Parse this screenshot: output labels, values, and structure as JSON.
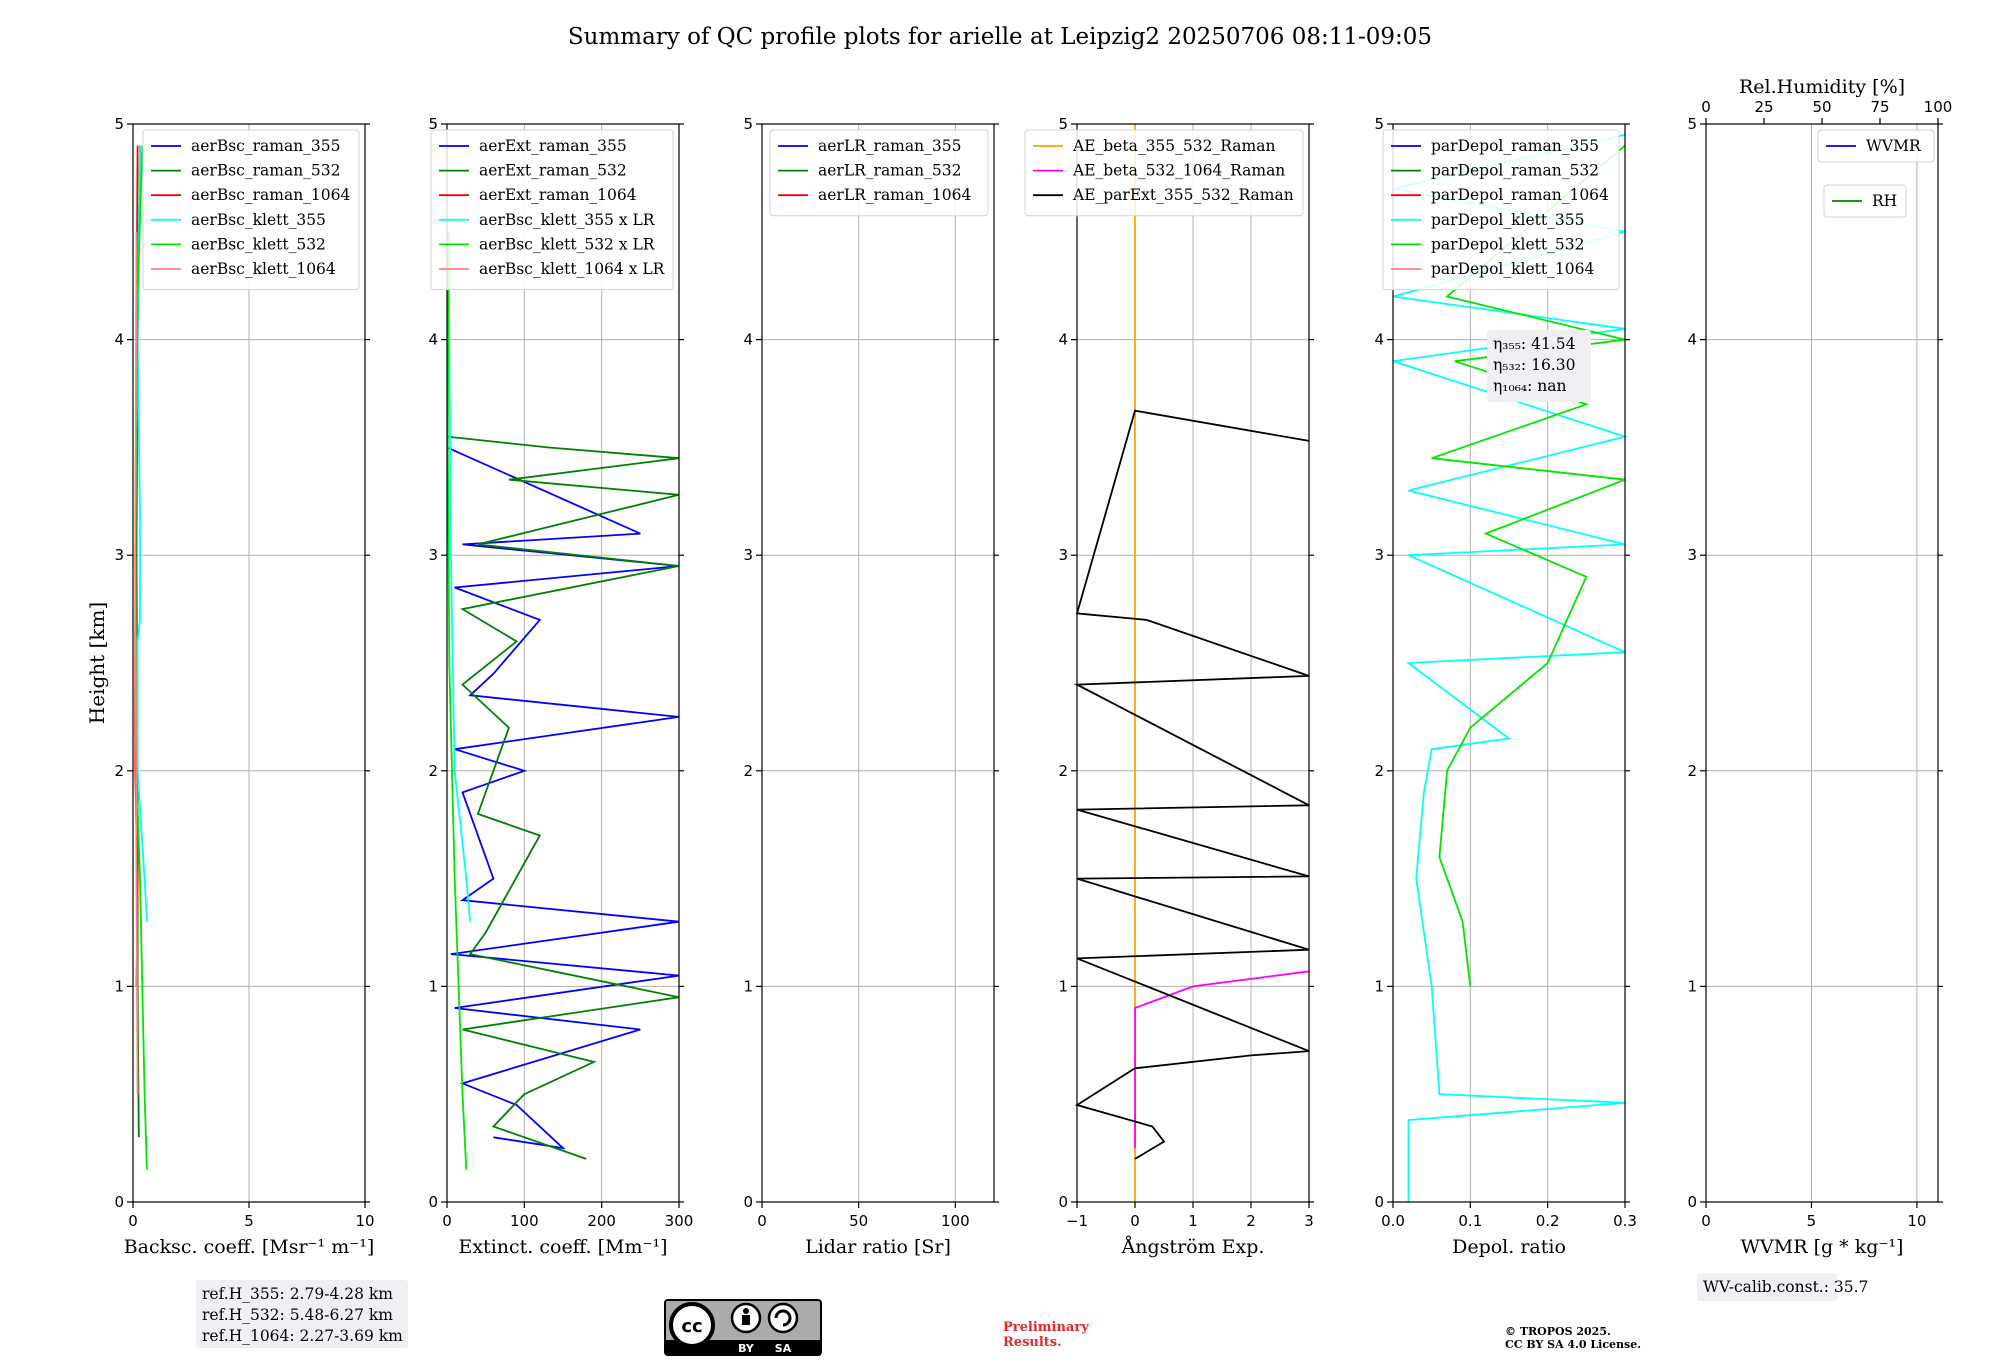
{
  "title": "Summary of QC profile plots for arielle at Leipzig2 20250706 08:11-09:05",
  "y_axis": {
    "label": "Height [km]",
    "range": [
      0,
      5
    ],
    "ticks": [
      "0",
      "1",
      "2",
      "3",
      "4",
      "5"
    ]
  },
  "chart_data": [
    {
      "type": "line",
      "xlabel": "Backsc. coeff. [Msr⁻¹ m⁻¹]",
      "xlim": [
        0,
        10
      ],
      "xticks": [
        "0",
        "5",
        "10"
      ],
      "legend_position": "top-right",
      "series": [
        {
          "name": "aerBsc_raman_355",
          "color": "#0000ff",
          "points": []
        },
        {
          "name": "aerBsc_raman_532",
          "color": "#008000",
          "points": [
            [
              0.25,
              0.3
            ],
            [
              0.2,
              1.0
            ],
            [
              0.2,
              2.0
            ],
            [
              0.15,
              3.0
            ],
            [
              0.2,
              4.0
            ],
            [
              0.3,
              4.9
            ]
          ]
        },
        {
          "name": "aerBsc_raman_1064",
          "color": "#ff0000",
          "points": [
            [
              0.15,
              1.0
            ],
            [
              0.2,
              1.45
            ],
            [
              0.1,
              2.0
            ],
            [
              0.1,
              3.0
            ],
            [
              0.15,
              4.0
            ],
            [
              0.2,
              4.9
            ]
          ]
        },
        {
          "name": "aerBsc_klett_355",
          "color": "#00ffff",
          "points": [
            [
              0.6,
              1.3
            ],
            [
              0.5,
              1.5
            ],
            [
              0.2,
              2.0
            ],
            [
              0.2,
              2.6
            ],
            [
              0.3,
              2.7
            ],
            [
              0.3,
              3.2
            ],
            [
              0.2,
              4.0
            ],
            [
              0.3,
              4.9
            ]
          ]
        },
        {
          "name": "aerBsc_klett_532",
          "color": "#00e600",
          "points": [
            [
              0.6,
              0.15
            ],
            [
              0.5,
              0.5
            ],
            [
              0.4,
              1.0
            ],
            [
              0.3,
              1.5
            ],
            [
              0.15,
              2.0
            ],
            [
              0.1,
              3.0
            ],
            [
              0.2,
              4.2
            ],
            [
              0.4,
              4.9
            ]
          ]
        },
        {
          "name": "aerBsc_klett_1064",
          "color": "#ff8080",
          "points": [
            [
              0.2,
              0.5
            ],
            [
              0.15,
              1.5
            ],
            [
              0.1,
              3.0
            ],
            [
              0.15,
              4.5
            ]
          ]
        }
      ],
      "annotation": [
        "ref.H_355: 2.79-4.28 km",
        "ref.H_532: 5.48-6.27 km",
        "ref.H_1064: 2.27-3.69 km"
      ]
    },
    {
      "type": "line",
      "xlabel": "Extinct. coeff. [Mm⁻¹]",
      "xlim": [
        0,
        300
      ],
      "xticks": [
        "0",
        "100",
        "200",
        "300"
      ],
      "legend_position": "top-right",
      "series": [
        {
          "name": "aerExt_raman_355",
          "color": "#0000ff",
          "points": [
            [
              60,
              0.3
            ],
            [
              150,
              0.25
            ],
            [
              90,
              0.45
            ],
            [
              20,
              0.55
            ],
            [
              250,
              0.8
            ],
            [
              10,
              0.9
            ],
            [
              300,
              1.05
            ],
            [
              5,
              1.15
            ],
            [
              300,
              1.3
            ],
            [
              20,
              1.4
            ],
            [
              60,
              1.5
            ],
            [
              20,
              1.9
            ],
            [
              100,
              2.0
            ],
            [
              10,
              2.1
            ],
            [
              300,
              2.25
            ],
            [
              30,
              2.35
            ],
            [
              60,
              2.45
            ],
            [
              120,
              2.7
            ],
            [
              10,
              2.85
            ],
            [
              300,
              2.95
            ],
            [
              20,
              3.05
            ],
            [
              250,
              3.1
            ],
            [
              0,
              3.5
            ]
          ]
        },
        {
          "name": "aerExt_raman_532",
          "color": "#008000",
          "points": [
            [
              180,
              0.2
            ],
            [
              60,
              0.35
            ],
            [
              100,
              0.5
            ],
            [
              190,
              0.65
            ],
            [
              20,
              0.8
            ],
            [
              300,
              0.95
            ],
            [
              30,
              1.15
            ],
            [
              50,
              1.25
            ],
            [
              120,
              1.7
            ],
            [
              40,
              1.8
            ],
            [
              80,
              2.2
            ],
            [
              20,
              2.4
            ],
            [
              90,
              2.6
            ],
            [
              20,
              2.75
            ],
            [
              300,
              2.95
            ],
            [
              40,
              3.05
            ],
            [
              300,
              3.28
            ],
            [
              80,
              3.35
            ],
            [
              300,
              3.45
            ],
            [
              130,
              3.5
            ],
            [
              0,
              3.55
            ]
          ]
        },
        {
          "name": "aerExt_raman_1064",
          "color": "#ff0000",
          "points": []
        },
        {
          "name": "aerBsc_klett_355 x LR",
          "color": "#00ffff",
          "points": [
            [
              30,
              1.3
            ],
            [
              25,
              1.5
            ],
            [
              10,
              2.0
            ],
            [
              5,
              3.0
            ],
            [
              2,
              4.5
            ]
          ]
        },
        {
          "name": "aerBsc_klett_532 x LR",
          "color": "#00e600",
          "points": [
            [
              25,
              0.15
            ],
            [
              20,
              0.5
            ],
            [
              15,
              1.0
            ],
            [
              10,
              1.5
            ],
            [
              3,
              2.5
            ],
            [
              1,
              3.5
            ],
            [
              2,
              4.5
            ]
          ]
        },
        {
          "name": "aerBsc_klett_1064 x LR",
          "color": "#ff8080",
          "points": []
        }
      ]
    },
    {
      "type": "line",
      "xlabel": "Lidar ratio [Sr]",
      "xlim": [
        0,
        120
      ],
      "xticks": [
        "0",
        "50",
        "100"
      ],
      "legend_position": "top-right",
      "series": [
        {
          "name": "aerLR_raman_355",
          "color": "#0000ff",
          "points": []
        },
        {
          "name": "aerLR_raman_532",
          "color": "#008000",
          "points": []
        },
        {
          "name": "aerLR_raman_1064",
          "color": "#ff0000",
          "points": []
        }
      ]
    },
    {
      "type": "line",
      "xlabel": "Ångström Exp.",
      "xlim": [
        -1,
        3
      ],
      "xticks": [
        "−1",
        "0",
        "1",
        "2",
        "3"
      ],
      "legend_position": "top-right",
      "series": [
        {
          "name": "AE_beta_355_532_Raman",
          "color": "#ffa500",
          "points": [
            [
              0,
              0.0
            ],
            [
              0,
              5.0
            ]
          ]
        },
        {
          "name": "AE_beta_532_1064_Raman",
          "color": "#ff00ff",
          "points": [
            [
              0,
              0.25
            ],
            [
              0,
              0.9
            ],
            [
              1,
              1.0
            ],
            [
              3,
              1.07
            ]
          ]
        },
        {
          "name": "AE_parExt_355_532_Raman",
          "color": "#000000",
          "points": [
            [
              0,
              0.2
            ],
            [
              0.5,
              0.28
            ],
            [
              0.3,
              0.35
            ],
            [
              -1,
              0.45
            ],
            [
              0,
              0.62
            ],
            [
              2,
              0.68
            ],
            [
              3,
              0.7
            ],
            [
              -1,
              1.13
            ],
            [
              3,
              1.17
            ],
            [
              -1,
              1.5
            ],
            [
              3,
              1.51
            ],
            [
              -1,
              1.82
            ],
            [
              3,
              1.84
            ],
            [
              -1,
              2.4
            ],
            [
              3,
              2.44
            ],
            [
              0.2,
              2.7
            ],
            [
              -1,
              2.73
            ],
            [
              0,
              3.67
            ],
            [
              3,
              3.53
            ]
          ]
        }
      ]
    },
    {
      "type": "line",
      "xlabel": "Depol. ratio",
      "xlim": [
        0,
        0.3
      ],
      "xticks": [
        "0.0",
        "0.1",
        "0.2",
        "0.3"
      ],
      "legend_position": "top-right",
      "series": [
        {
          "name": "parDepol_raman_355",
          "color": "#0000ff",
          "points": []
        },
        {
          "name": "parDepol_raman_532",
          "color": "#008000",
          "points": []
        },
        {
          "name": "parDepol_raman_1064",
          "color": "#ff0000",
          "points": []
        },
        {
          "name": "parDepol_klett_355",
          "color": "#00ffff",
          "points": [
            [
              0.02,
              0.0
            ],
            [
              0.02,
              0.38
            ],
            [
              0.3,
              0.46
            ],
            [
              0.06,
              0.5
            ],
            [
              0.05,
              1.0
            ],
            [
              0.03,
              1.5
            ],
            [
              0.04,
              1.9
            ],
            [
              0.05,
              2.1
            ],
            [
              0.15,
              2.15
            ],
            [
              0.02,
              2.5
            ],
            [
              0.3,
              2.55
            ],
            [
              0.02,
              3.0
            ],
            [
              0.3,
              3.05
            ],
            [
              0.02,
              3.3
            ],
            [
              0.3,
              3.55
            ],
            [
              0.0,
              3.9
            ],
            [
              0.3,
              4.05
            ],
            [
              0.0,
              4.2
            ],
            [
              0.3,
              4.5
            ],
            [
              0.0,
              4.7
            ],
            [
              0.3,
              4.95
            ]
          ]
        },
        {
          "name": "parDepol_klett_532",
          "color": "#00e600",
          "points": [
            [
              0.1,
              1.0
            ],
            [
              0.09,
              1.3
            ],
            [
              0.06,
              1.6
            ],
            [
              0.07,
              2.0
            ],
            [
              0.1,
              2.2
            ],
            [
              0.2,
              2.5
            ],
            [
              0.25,
              2.9
            ],
            [
              0.12,
              3.1
            ],
            [
              0.3,
              3.35
            ],
            [
              0.05,
              3.45
            ],
            [
              0.25,
              3.7
            ],
            [
              0.08,
              3.9
            ],
            [
              0.3,
              4.0
            ],
            [
              0.07,
              4.2
            ],
            [
              0.3,
              4.9
            ]
          ]
        },
        {
          "name": "parDepol_klett_1064",
          "color": "#ff8080",
          "points": []
        }
      ],
      "annotation": [
        "η₃₅₅: 41.54",
        "η₅₃₂: 16.30",
        "η₁₀₆₄: nan"
      ]
    },
    {
      "type": "line",
      "xlabel": "WVMR [g * kg⁻¹]",
      "xlim": [
        0,
        11
      ],
      "xticks": [
        "0",
        "5",
        "10"
      ],
      "secondary_xlabel": "Rel.Humidity [%]",
      "secondary_xlim": [
        0,
        100
      ],
      "secondary_xticks": [
        "0",
        "25",
        "50",
        "75",
        "100"
      ],
      "legend_position": "top-right",
      "series": [
        {
          "name": "WVMR",
          "color": "#0000ff",
          "points": []
        },
        {
          "name": "RH",
          "color": "#008000",
          "points": []
        }
      ],
      "annotation": [
        "WV-calib.const.: 35.7"
      ]
    }
  ],
  "footer": {
    "cc_badge": {
      "by": "BY",
      "sa": "SA"
    },
    "preliminary": [
      "Preliminary",
      "Results."
    ],
    "copyright": [
      "© TROPOS 2025.",
      "CC BY SA 4.0 License."
    ]
  }
}
